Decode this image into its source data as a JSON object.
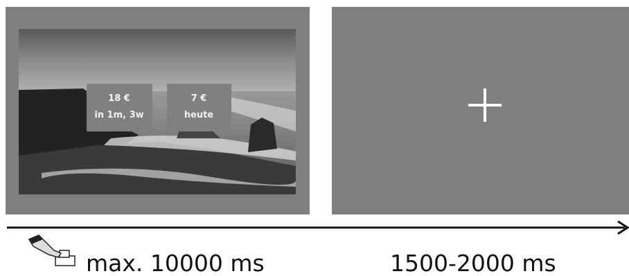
{
  "panels": [
    {
      "options": [
        {
          "amount": "18 €",
          "delay": "in 1m, 3w"
        },
        {
          "amount": "7 €",
          "delay": "heute"
        }
      ]
    }
  ],
  "timeline": {
    "durations": [
      "max. 10000 ms",
      "1500-2000 ms"
    ]
  }
}
